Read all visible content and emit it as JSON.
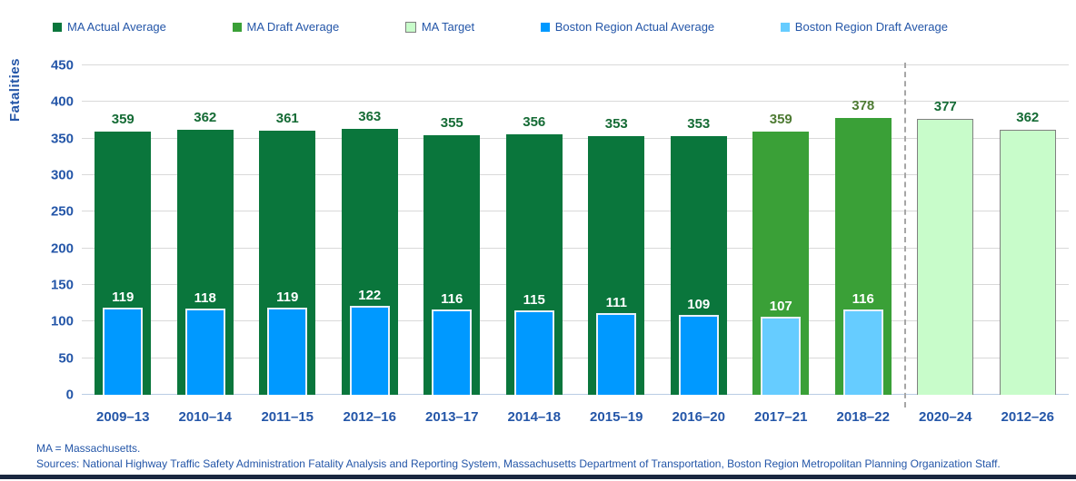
{
  "colors": {
    "ma_actual": "#0a763c",
    "ma_draft": "#3aa037",
    "ma_target": "#c8fcca",
    "ma_target_border": "#7f7f7f",
    "boston_actual": "#0099ff",
    "boston_draft": "#66ccff",
    "axis_text": "#2456a8",
    "value_label_actual": "#156b35",
    "value_label_draft": "#4e7b33",
    "gridline": "#d9d9d9",
    "separator": "#a6a6a6",
    "bottom_rule": "#1a2740"
  },
  "legend": {
    "items": [
      {
        "label": "MA Actual Average",
        "swatch": "ma-actual"
      },
      {
        "label": "MA Draft Average",
        "swatch": "ma-draft"
      },
      {
        "label": "MA Target",
        "swatch": "ma-target"
      },
      {
        "label": "Boston Region Actual Average",
        "swatch": "boston-actual"
      },
      {
        "label": "Boston Region Draft Average",
        "swatch": "boston-draft"
      }
    ]
  },
  "chart_data": {
    "type": "bar",
    "title": "",
    "ylabel": "Fatalities",
    "xlabel": "",
    "ylim": [
      0,
      450
    ],
    "yticks": [
      0,
      50,
      100,
      150,
      200,
      250,
      300,
      350,
      400,
      450
    ],
    "grid": "horizontal",
    "legend_position": "top",
    "categories": [
      "2009–13",
      "2010–14",
      "2011–15",
      "2012–16",
      "2013–17",
      "2014–18",
      "2015–19",
      "2016–20",
      "2017–21",
      "2018–22",
      "2020–24",
      "2012–26"
    ],
    "series": [
      {
        "name": "MA Actual Average",
        "values": [
          359,
          362,
          361,
          363,
          355,
          356,
          353,
          353,
          null,
          null,
          null,
          null
        ]
      },
      {
        "name": "MA Draft Average",
        "values": [
          null,
          null,
          null,
          null,
          null,
          null,
          null,
          null,
          359,
          378,
          null,
          null
        ]
      },
      {
        "name": "MA Target",
        "values": [
          null,
          null,
          null,
          null,
          null,
          null,
          null,
          null,
          null,
          null,
          377,
          362
        ]
      },
      {
        "name": "Boston Region Actual Average",
        "values": [
          119,
          118,
          119,
          122,
          116,
          115,
          111,
          109,
          null,
          null,
          null,
          null
        ]
      },
      {
        "name": "Boston Region Draft Average",
        "values": [
          null,
          null,
          null,
          null,
          null,
          null,
          null,
          null,
          107,
          116,
          null,
          null
        ]
      }
    ],
    "bars": [
      {
        "category": "2009–13",
        "ma": 359,
        "boston": 119,
        "type": "actual"
      },
      {
        "category": "2010–14",
        "ma": 362,
        "boston": 118,
        "type": "actual"
      },
      {
        "category": "2011–15",
        "ma": 361,
        "boston": 119,
        "type": "actual"
      },
      {
        "category": "2012–16",
        "ma": 363,
        "boston": 122,
        "type": "actual"
      },
      {
        "category": "2013–17",
        "ma": 355,
        "boston": 116,
        "type": "actual"
      },
      {
        "category": "2014–18",
        "ma": 356,
        "boston": 115,
        "type": "actual"
      },
      {
        "category": "2015–19",
        "ma": 353,
        "boston": 111,
        "type": "actual"
      },
      {
        "category": "2016–20",
        "ma": 353,
        "boston": 109,
        "type": "actual"
      },
      {
        "category": "2017–21",
        "ma": 359,
        "boston": 107,
        "type": "draft"
      },
      {
        "category": "2018–22",
        "ma": 378,
        "boston": 116,
        "type": "draft"
      },
      {
        "category": "2020–24",
        "ma": 377,
        "boston": null,
        "type": "target"
      },
      {
        "category": "2012–26",
        "ma": 362,
        "boston": null,
        "type": "target"
      }
    ],
    "separator_after_index": 9
  },
  "footer": {
    "note": "MA = Massachusetts.",
    "sources": "Sources: National Highway Traffic Safety Administration Fatality Analysis and Reporting System, Massachusetts Department of Transportation, Boston Region Metropolitan Planning Organization Staff."
  }
}
